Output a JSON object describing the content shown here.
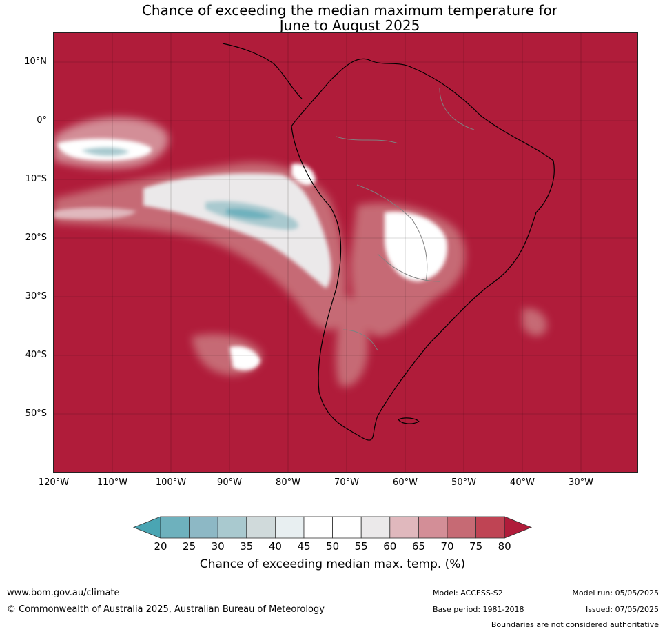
{
  "title": {
    "line1": "Chance of exceeding the median maximum temperature for",
    "line2": "June to August 2025"
  },
  "map": {
    "latitude_labels": [
      "10°N",
      "0°",
      "10°S",
      "20°S",
      "30°S",
      "40°S",
      "50°S"
    ],
    "longitude_labels": [
      "120°W",
      "110°W",
      "100°W",
      "90°W",
      "80°W",
      "70°W",
      "60°W",
      "50°W",
      "40°W",
      "30°W"
    ],
    "colors": {
      "background": "#b01c3a",
      "land_border": "#000000",
      "country_border": "#808080"
    }
  },
  "legend": {
    "ticks": [
      "20",
      "25",
      "30",
      "35",
      "40",
      "45",
      "50",
      "55",
      "60",
      "65",
      "70",
      "75",
      "80"
    ],
    "colors": [
      "#4aa5b3",
      "#6eb1bd",
      "#8db8c5",
      "#a9c9cf",
      "#d0dadb",
      "#e8eff1",
      "#ffffff",
      "#ffffff",
      "#ebe9ea",
      "#e0b8bd",
      "#d38e97",
      "#c66a74",
      "#bf4454",
      "#b01c3a"
    ],
    "label": "Chance of exceeding median max. temp. (%)"
  },
  "footer": {
    "url": "www.bom.gov.au/climate",
    "copyright": "© Commonwealth of Australia 2025, Australian Bureau of Meteorology",
    "model": "Model: ACCESS-S2",
    "base_period": "Base period: 1981-2018",
    "model_run": "Model run: 05/05/2025",
    "issued": "Issued: 07/05/2025",
    "boundaries_note": "Boundaries are not considered authoritative"
  }
}
